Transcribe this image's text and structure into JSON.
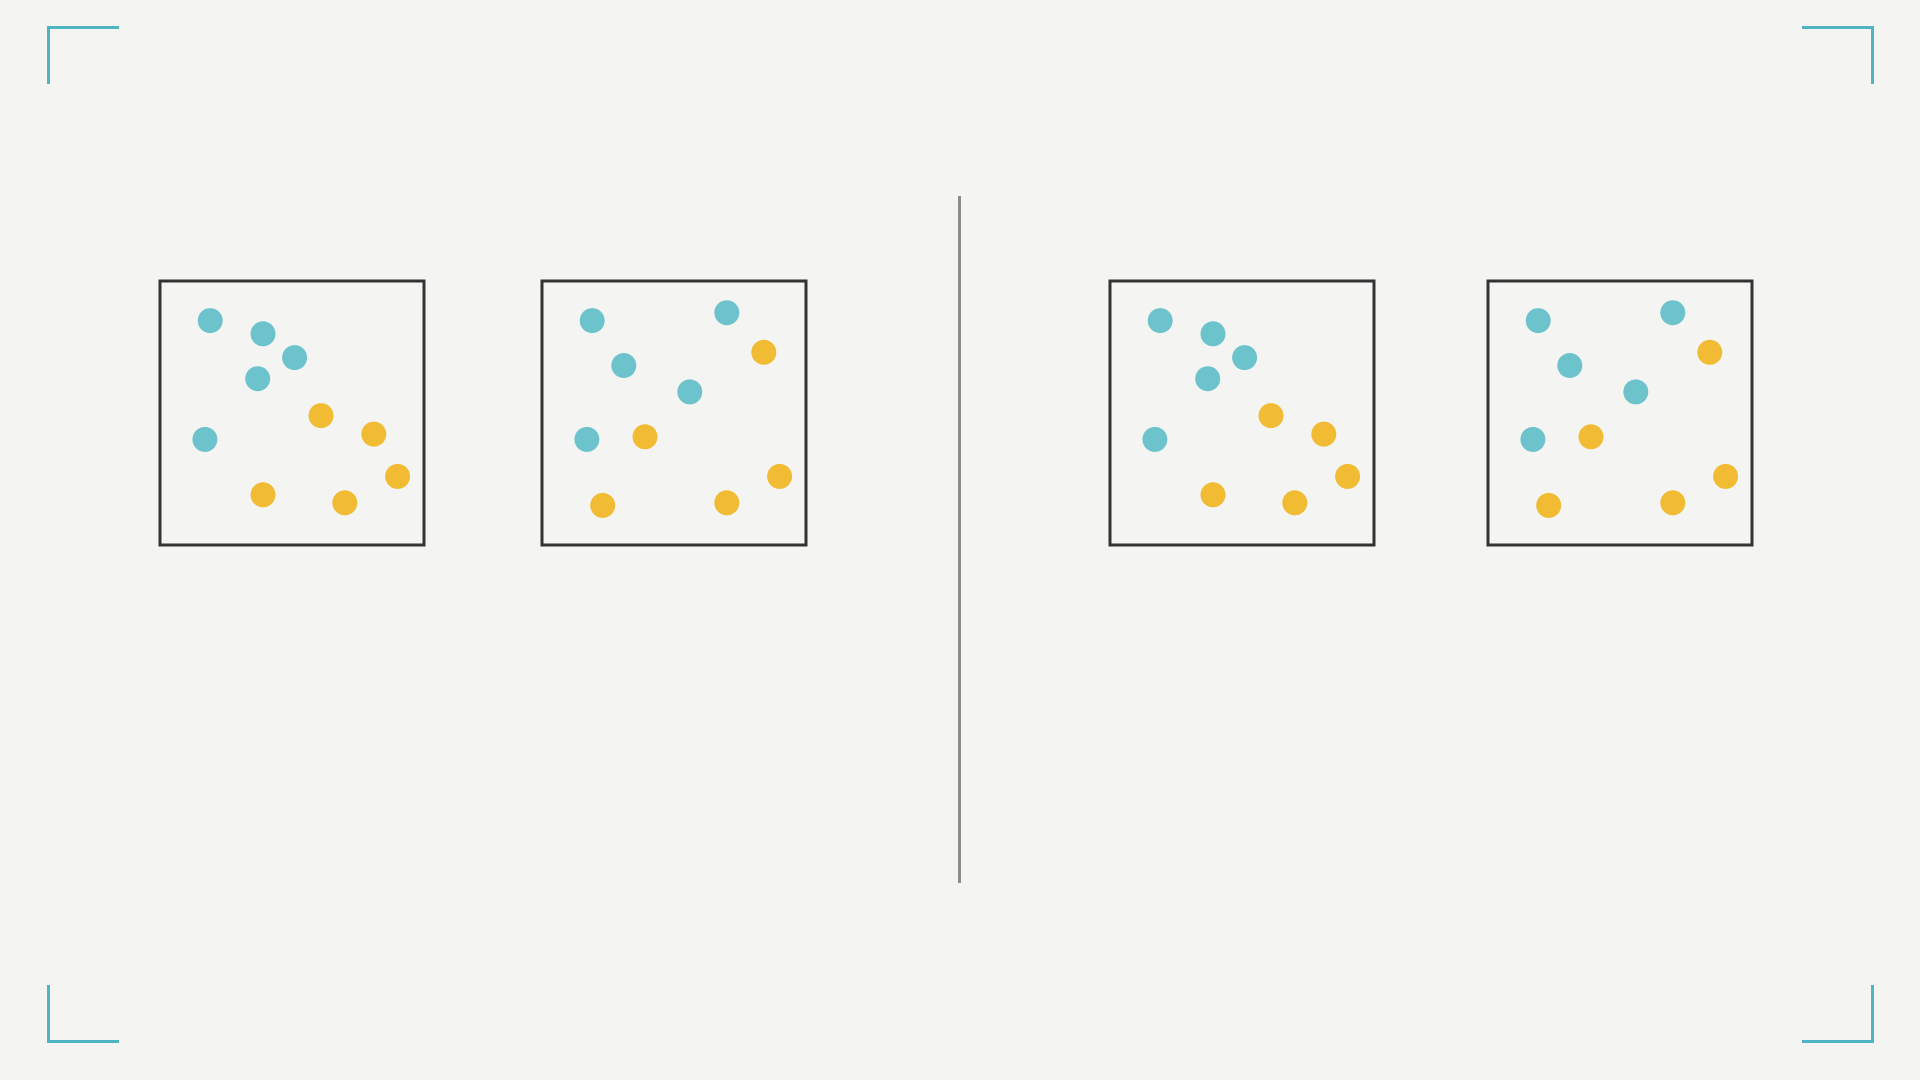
{
  "colors": {
    "background": "#f4f4f3",
    "accent": "#4fb5c2",
    "class_a": "#6cc3cb",
    "class_b": "#f1bb34",
    "frame": "#333333",
    "divider": "#8c8c8c"
  },
  "chart_data": [
    {
      "type": "scatter",
      "title": "",
      "xlabel": "",
      "ylabel": "",
      "xlim": [
        0,
        10
      ],
      "ylim": [
        0,
        10
      ],
      "grid": false,
      "series": [
        {
          "color": "#6cc3cb",
          "points": [
            [
              1.9,
              8.5
            ],
            [
              3.9,
              8.0
            ],
            [
              5.1,
              7.1
            ],
            [
              3.7,
              6.3
            ],
            [
              1.7,
              4.0
            ]
          ]
        },
        {
          "color": "#f1bb34",
          "points": [
            [
              6.1,
              4.9
            ],
            [
              8.1,
              4.2
            ],
            [
              9.0,
              2.6
            ],
            [
              3.9,
              1.9
            ],
            [
              7.0,
              1.6
            ]
          ]
        }
      ]
    },
    {
      "type": "scatter",
      "title": "",
      "xlabel": "",
      "ylabel": "",
      "xlim": [
        0,
        10
      ],
      "ylim": [
        0,
        10
      ],
      "grid": false,
      "series": [
        {
          "color": "#6cc3cb",
          "points": [
            [
              1.9,
              8.5
            ],
            [
              7.0,
              8.8
            ],
            [
              3.1,
              6.8
            ],
            [
              5.6,
              5.8
            ],
            [
              1.7,
              4.0
            ]
          ]
        },
        {
          "color": "#f1bb34",
          "points": [
            [
              8.4,
              7.3
            ],
            [
              3.9,
              4.1
            ],
            [
              9.0,
              2.6
            ],
            [
              2.3,
              1.5
            ],
            [
              7.0,
              1.6
            ]
          ]
        }
      ]
    },
    {
      "type": "scatter",
      "title": "",
      "xlabel": "",
      "ylabel": "",
      "xlim": [
        0,
        10
      ],
      "ylim": [
        0,
        10
      ],
      "grid": false,
      "series": [
        {
          "color": "#6cc3cb",
          "points": [
            [
              1.9,
              8.5
            ],
            [
              3.9,
              8.0
            ],
            [
              5.1,
              7.1
            ],
            [
              3.7,
              6.3
            ],
            [
              1.7,
              4.0
            ]
          ]
        },
        {
          "color": "#f1bb34",
          "points": [
            [
              6.1,
              4.9
            ],
            [
              8.1,
              4.2
            ],
            [
              9.0,
              2.6
            ],
            [
              3.9,
              1.9
            ],
            [
              7.0,
              1.6
            ]
          ]
        }
      ]
    },
    {
      "type": "scatter",
      "title": "",
      "xlabel": "",
      "ylabel": "",
      "xlim": [
        0,
        10
      ],
      "ylim": [
        0,
        10
      ],
      "grid": false,
      "series": [
        {
          "color": "#6cc3cb",
          "points": [
            [
              1.9,
              8.5
            ],
            [
              7.0,
              8.8
            ],
            [
              3.1,
              6.8
            ],
            [
              5.6,
              5.8
            ],
            [
              1.7,
              4.0
            ]
          ]
        },
        {
          "color": "#f1bb34",
          "points": [
            [
              8.4,
              7.3
            ],
            [
              3.9,
              4.1
            ],
            [
              9.0,
              2.6
            ],
            [
              2.3,
              1.5
            ],
            [
              7.0,
              1.6
            ]
          ]
        }
      ]
    }
  ]
}
